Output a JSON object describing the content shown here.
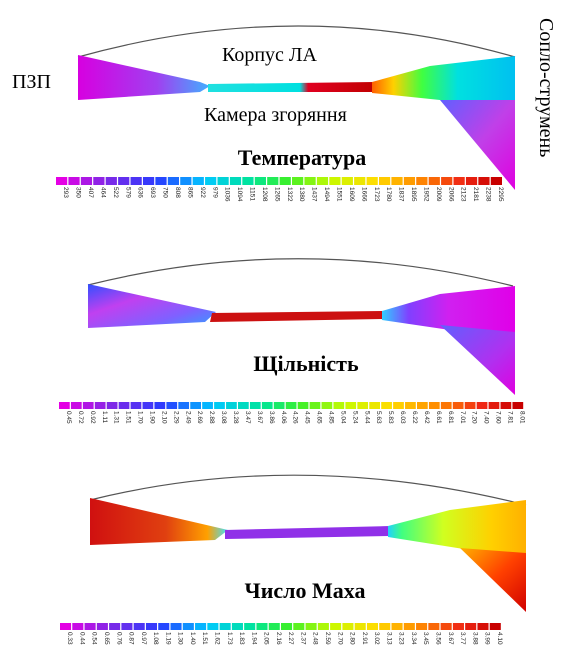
{
  "labels": {
    "inlet": "ПЗП",
    "body": "Корпус ЛА",
    "chamber": "Камера згоряння",
    "nozzle": "Сопло-струмень"
  },
  "panels": [
    {
      "title": "Температура",
      "scale_ticks": [
        "293",
        "350",
        "407",
        "464",
        "522",
        "579",
        "636",
        "693",
        "750",
        "808",
        "865",
        "922",
        "979",
        "1036",
        "1094",
        "1151",
        "1208",
        "1265",
        "1322",
        "1380",
        "1437",
        "1494",
        "1551",
        "1609",
        "1666",
        "1723",
        "1780",
        "1837",
        "1895",
        "1952",
        "2009",
        "2066",
        "2123",
        "2181",
        "2238",
        "2295"
      ]
    },
    {
      "title": "Щільність",
      "scale_ticks": [
        "0.45",
        "0.72",
        "0.92",
        "1.11",
        "1.31",
        "1.51",
        "1.70",
        "1.90",
        "2.10",
        "2.29",
        "2.49",
        "2.69",
        "2.88",
        "3.08",
        "3.28",
        "3.47",
        "3.67",
        "3.86",
        "4.06",
        "4.26",
        "4.45",
        "4.65",
        "4.85",
        "5.04",
        "5.24",
        "5.44",
        "5.63",
        "5.83",
        "6.03",
        "6.22",
        "6.42",
        "6.61",
        "6.81",
        "7.01",
        "7.20",
        "7.40",
        "7.60",
        "7.81",
        "8.01"
      ]
    },
    {
      "title": "Число Маха",
      "scale_ticks": [
        "0.33",
        "0.44",
        "0.54",
        "0.65",
        "0.76",
        "0.87",
        "0.97",
        "1.08",
        "1.19",
        "1.30",
        "1.40",
        "1.51",
        "1.62",
        "1.73",
        "1.83",
        "1.94",
        "2.05",
        "2.16",
        "2.27",
        "2.37",
        "2.48",
        "2.59",
        "2.70",
        "2.80",
        "2.91",
        "3.02",
        "3.13",
        "3.23",
        "3.34",
        "3.45",
        "3.56",
        "3.67",
        "3.77",
        "3.88",
        "3.99",
        "4.10"
      ]
    }
  ]
}
